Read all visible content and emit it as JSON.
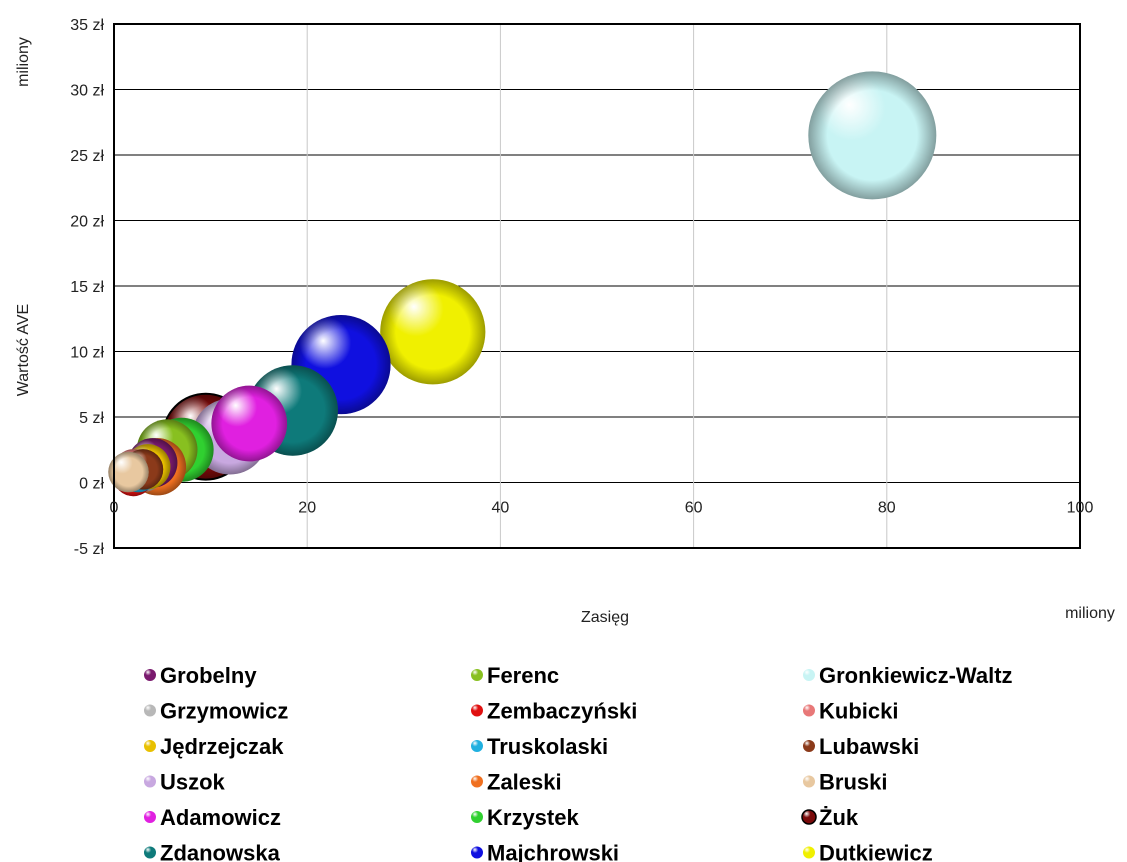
{
  "chart_data": {
    "type": "bubble",
    "title": "",
    "xlabel": "Zasięg",
    "ylabel": "Wartość AVE",
    "x_unit": "miliony",
    "y_unit": "miliony",
    "xlim": [
      0,
      100
    ],
    "ylim": [
      -5,
      35
    ],
    "x_ticks": [
      "0",
      "20",
      "40",
      "60",
      "80",
      "100"
    ],
    "y_ticks": [
      "-5 zł",
      "0 zł",
      "5 zł",
      "10 zł",
      "15 zł",
      "20 zł",
      "25 zł",
      "30 zł",
      "35 zł"
    ],
    "grid": true,
    "legend_position": "bottom",
    "series": [
      {
        "name": "Grobelny",
        "x": 4.0,
        "y": 1.5,
        "size": 0.6,
        "color": "#7a1a6e"
      },
      {
        "name": "Grzymowicz",
        "x": 3.0,
        "y": 1.0,
        "size": 0.5,
        "color": "#b8b8b8"
      },
      {
        "name": "Jędrzejczak",
        "x": 3.5,
        "y": 1.2,
        "size": 0.5,
        "color": "#e8c000"
      },
      {
        "name": "Uszok",
        "x": 12.0,
        "y": 3.5,
        "size": 1.4,
        "color": "#c8a8e0"
      },
      {
        "name": "Adamowicz",
        "x": 14.0,
        "y": 4.5,
        "size": 1.4,
        "color": "#e020e0"
      },
      {
        "name": "Zdanowska",
        "x": 18.5,
        "y": 5.5,
        "size": 2.0,
        "color": "#0e7a7a"
      },
      {
        "name": "Ferenc",
        "x": 5.5,
        "y": 2.5,
        "size": 0.9,
        "color": "#88c020"
      },
      {
        "name": "Zembaczyński",
        "x": 2.0,
        "y": 0.5,
        "size": 0.4,
        "color": "#e01010"
      },
      {
        "name": "Truskolaski",
        "x": 2.5,
        "y": 0.8,
        "size": 0.4,
        "color": "#20b0e0"
      },
      {
        "name": "Zaleski",
        "x": 4.5,
        "y": 1.2,
        "size": 0.8,
        "color": "#f07020"
      },
      {
        "name": "Krzystek",
        "x": 7.0,
        "y": 2.5,
        "size": 1.0,
        "color": "#30d030"
      },
      {
        "name": "Majchrowski",
        "x": 23.5,
        "y": 9.0,
        "size": 2.4,
        "color": "#1010e0"
      },
      {
        "name": "Gronkiewicz-Waltz",
        "x": 78.5,
        "y": 26.5,
        "size": 4.0,
        "color": "#c8f4f4"
      },
      {
        "name": "Kubicki",
        "x": 2.0,
        "y": 1.0,
        "size": 0.4,
        "color": "#e87878"
      },
      {
        "name": "Lubawski",
        "x": 3.0,
        "y": 1.0,
        "size": 0.4,
        "color": "#8b3a1a"
      },
      {
        "name": "Bruski",
        "x": 1.5,
        "y": 0.8,
        "size": 0.4,
        "color": "#e8c8a0"
      },
      {
        "name": "Żuk",
        "x": 9.5,
        "y": 3.5,
        "size": 1.8,
        "color": "#7a0a0a"
      },
      {
        "name": "Dutkiewicz",
        "x": 33.0,
        "y": 11.5,
        "size": 2.7,
        "color": "#f0f000"
      }
    ],
    "legend_order": [
      "Grobelny",
      "Ferenc",
      "Gronkiewicz-Waltz",
      "Grzymowicz",
      "Zembaczyński",
      "Kubicki",
      "Jędrzejczak",
      "Truskolaski",
      "Lubawski",
      "Uszok",
      "Zaleski",
      "Bruski",
      "Adamowicz",
      "Krzystek",
      "Żuk",
      "Zdanowska",
      "Majchrowski",
      "Dutkiewicz"
    ]
  }
}
